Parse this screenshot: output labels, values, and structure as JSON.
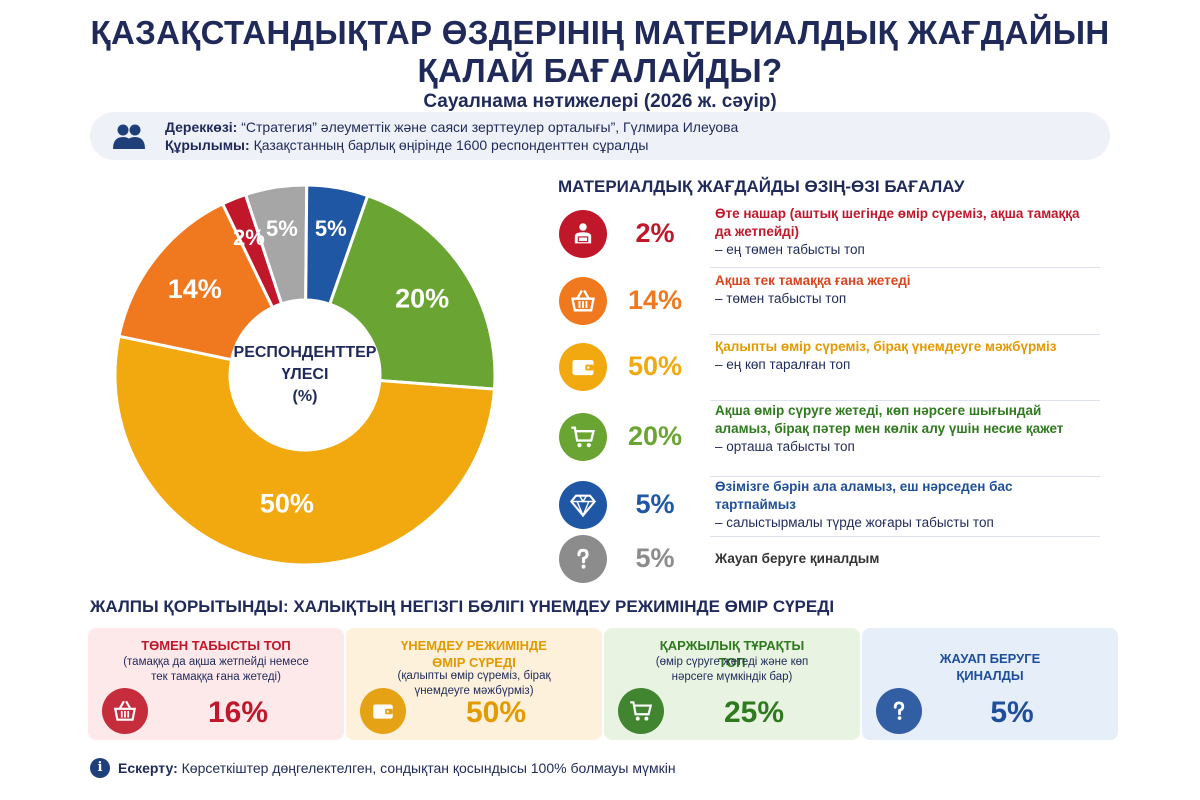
{
  "header": {
    "title_line1": "ҚАЗАҚСТАНДЫҚТАР ӨЗДЕРІНІҢ МАТЕРИАЛДЫҚ ЖАҒДАЙЫН",
    "title_line2": "ҚАЛАЙ БАҒАЛАЙДЫ?",
    "subtitle": "Сауалнама нәтижелері (2026 ж. сәуір)"
  },
  "source": {
    "source_label": "Дереккөзі:",
    "source_text": "“Стратегия” әлеуметтік және саяси зерттеулер орталығы”, Гүлмира Илеуова",
    "structure_label": "Құрылымы:",
    "structure_text": "Қазақстанның барлық өңірінде 1600 респонденттен сұралды",
    "icon": "people-icon"
  },
  "chart_data": {
    "type": "pie",
    "center_label": [
      "РЕСПОНДЕНТТЕР",
      "ҮЛЕСІ",
      "(%)"
    ],
    "slices": [
      {
        "label": "2%",
        "value": 2,
        "color": "#c0182a"
      },
      {
        "label": "5%",
        "value": 5,
        "color": "#a6a6a6"
      },
      {
        "label": "5%",
        "value": 5,
        "color": "#1f57a5"
      },
      {
        "label": "20%",
        "value": 20,
        "color": "#6aa533"
      },
      {
        "label": "50%",
        "value": 50,
        "color": "#f2a90f"
      },
      {
        "label": "14%",
        "value": 14,
        "color": "#f0781e"
      }
    ]
  },
  "legend": {
    "title": "МАТЕРИАЛДЫҚ ЖАҒДАЙДЫ ӨЗІҢ-ӨЗІ БАҒАЛАУ",
    "items": [
      {
        "pct": "2%",
        "head": "Өте нашар (аштық шегінде өмір сүреміз, ақша тамаққа да жетпейді)",
        "sub": "– ең төмен табысты топ",
        "color": "#c0182a",
        "head_color": "#c0182a",
        "icon": "person-reading-icon"
      },
      {
        "pct": "14%",
        "head": "Ақша тек тамаққа ғана жетеді",
        "sub": "– төмен табысты топ",
        "color": "#f0781e",
        "head_color": "#d9441c",
        "icon": "basket-icon"
      },
      {
        "pct": "50%",
        "head": "Қалыпты өмір сүреміз, бірақ үнемдеуге мәжбүрміз",
        "sub": "– ең көп таралған топ",
        "color": "#f2a90f",
        "head_color": "#e39a00",
        "icon": "wallet-icon"
      },
      {
        "pct": "20%",
        "head": "Ақша өмір сүруге жетеді, көп нәрсеге шығындай аламыз, бірақ пәтер мен көлік алу үшін несие қажет",
        "sub": "– орташа табысты топ",
        "color": "#6aa533",
        "head_color": "#2f7a1e",
        "icon": "cart-icon"
      },
      {
        "pct": "5%",
        "head": "Өзімізге бәрін ала аламыз, еш нәрседен бас тартпаймыз",
        "sub": "– салыстырмалы түрде жоғары табысты топ",
        "color": "#1f57a5",
        "head_color": "#1f4f9a",
        "icon": "diamond-icon"
      },
      {
        "pct": "5%",
        "head": "Жауап беруге қиналдым",
        "sub": "",
        "color": "#8c8c8c",
        "head_color": "#333333",
        "icon": "question-icon"
      }
    ]
  },
  "summary": {
    "title": "ЖАЛПЫ ҚОРЫТЫНДЫ: ХАЛЫҚТЫҢ НЕГІЗГІ БӨЛІГІ ҮНЕМДЕУ РЕЖИМІНДЕ ӨМІР СҮРЕДІ",
    "cards": [
      {
        "title": "ТӨМЕН ТАБЫСТЫ ТОП",
        "note": "(тамаққа да ақша жетпейді немесе тек тамаққа ғана жетеді)",
        "value": "16%",
        "bg": "#fde9ea",
        "color": "#c0182a",
        "icon": "basket-icon"
      },
      {
        "title": "ҮНЕМДЕУ РЕЖИМІНДЕ ӨМІР СҮРЕДІ",
        "note": "(қалыпты өмір сүреміз, бірақ үнемдеуге мәжбүрміз)",
        "value": "50%",
        "bg": "#fdf1dc",
        "color": "#e39a00",
        "icon": "wallet-icon"
      },
      {
        "title": "ҚАРЖЫЛЫҚ ТҰРАҚТЫ ТОП",
        "note": "(өмір сүруге жетеді және көп нәрсеге мүмкіндік бар)",
        "value": "25%",
        "bg": "#e8f3e2",
        "color": "#2f7a1e",
        "icon": "cart-icon"
      },
      {
        "title": "ЖАУАП БЕРУГЕ ҚИНАЛДЫ",
        "note": "",
        "value": "5%",
        "bg": "#e6eef9",
        "color": "#1f4f9a",
        "icon": "question-icon"
      }
    ]
  },
  "footnote": {
    "label": "Ескерту:",
    "text": "Көрсеткіштер дөңгелектелген, сондықтан қосындысы 100% болмауы мүмкін"
  }
}
